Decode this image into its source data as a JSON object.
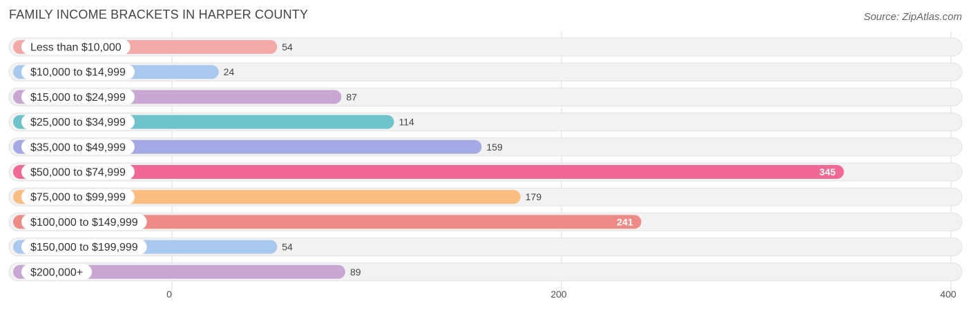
{
  "header": {
    "title": "FAMILY INCOME BRACKETS IN HARPER COUNTY",
    "source": "Source: ZipAtlas.com"
  },
  "chart_data": {
    "type": "bar",
    "orientation": "horizontal",
    "title": "FAMILY INCOME BRACKETS IN HARPER COUNTY",
    "xlabel": "",
    "ylabel": "",
    "xlim": [
      0,
      400
    ],
    "ticks": [
      0,
      200,
      400
    ],
    "tick_labels": [
      "0",
      "200",
      "400"
    ],
    "grid": true,
    "categories": [
      "Less than $10,000",
      "$10,000 to $14,999",
      "$15,000 to $24,999",
      "$25,000 to $34,999",
      "$35,000 to $49,999",
      "$50,000 to $74,999",
      "$75,000 to $99,999",
      "$100,000 to $149,999",
      "$150,000 to $199,999",
      "$200,000+"
    ],
    "values": [
      54,
      24,
      87,
      114,
      159,
      345,
      179,
      241,
      54,
      89
    ],
    "value_labels": [
      "54",
      "24",
      "87",
      "114",
      "159",
      "345",
      "179",
      "241",
      "54",
      "89"
    ],
    "colors": [
      "#f2a9a8",
      "#a9c8ee",
      "#c8a8d2",
      "#6cc3ca",
      "#a4a9e6",
      "#f06893",
      "#fbbd80",
      "#ee8b86",
      "#a9c8ee",
      "#c8a8d2"
    ],
    "label_inside": [
      false,
      false,
      false,
      false,
      false,
      true,
      false,
      true,
      false,
      false
    ]
  }
}
